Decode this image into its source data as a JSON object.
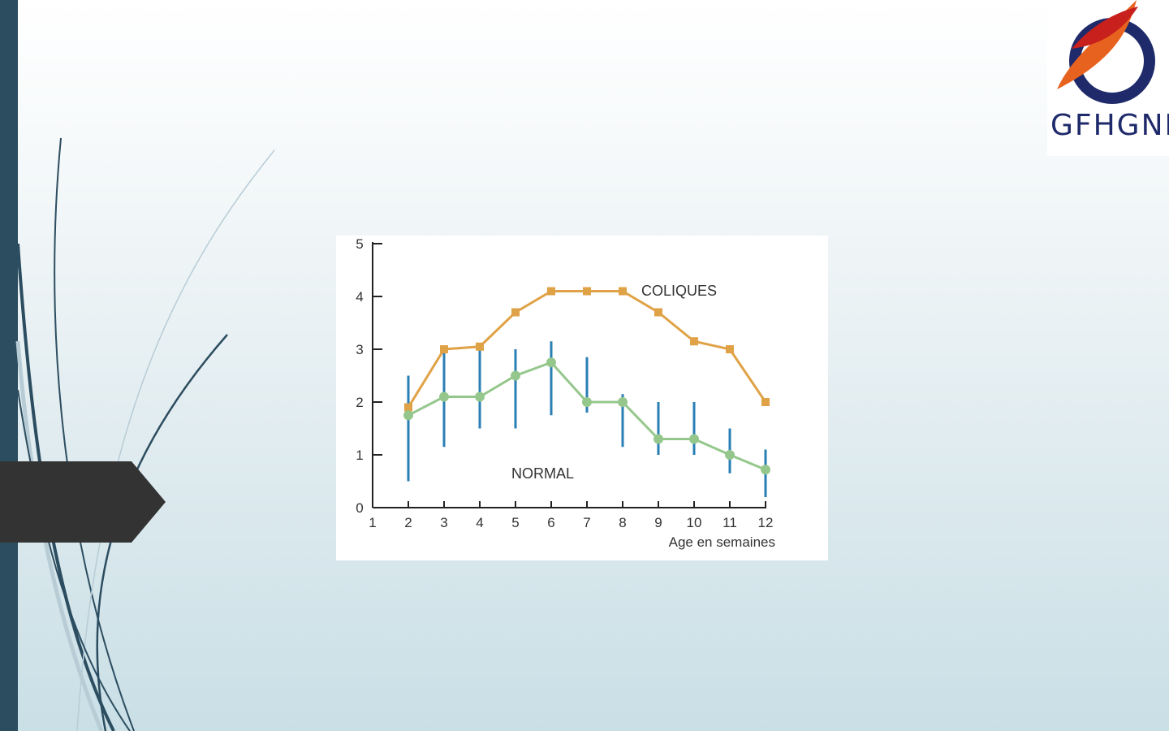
{
  "logo": {
    "text": "GFHGNP"
  },
  "colors": {
    "sidebar": "#2c4d60",
    "coliques": "#e0a246",
    "normal": "#95c78c",
    "error_bar": "#2a7fb5",
    "tab": "#333333"
  },
  "chart_data": {
    "type": "line",
    "xlabel": "Age en semaines",
    "ylabel": "",
    "xlim": [
      1,
      12
    ],
    "ylim": [
      0,
      5
    ],
    "x_ticks": [
      1,
      2,
      3,
      4,
      5,
      6,
      7,
      8,
      9,
      10,
      11,
      12
    ],
    "y_ticks": [
      0,
      1,
      2,
      3,
      4,
      5
    ],
    "grid": false,
    "series": [
      {
        "name": "COLIQUES",
        "marker": "square",
        "color": "#e0a246",
        "x": [
          2,
          3,
          4,
          5,
          6,
          7,
          8,
          9,
          10,
          11,
          12
        ],
        "values": [
          1.9,
          3.0,
          3.05,
          3.7,
          4.1,
          4.1,
          4.1,
          3.7,
          3.15,
          3.0,
          2.0
        ]
      },
      {
        "name": "NORMAL",
        "marker": "circle",
        "color": "#95c78c",
        "x": [
          2,
          3,
          4,
          5,
          6,
          7,
          8,
          9,
          10,
          11,
          12
        ],
        "values": [
          1.75,
          2.1,
          2.1,
          2.5,
          2.75,
          2.0,
          2.0,
          1.3,
          1.3,
          1.0,
          0.72
        ],
        "error_low": [
          0.5,
          1.15,
          1.5,
          1.5,
          1.75,
          1.8,
          1.15,
          1.0,
          1.0,
          0.65,
          0.2
        ],
        "error_high": [
          2.5,
          3.0,
          3.0,
          3.0,
          3.15,
          2.85,
          2.15,
          2.0,
          2.0,
          1.5,
          1.1
        ]
      }
    ]
  }
}
